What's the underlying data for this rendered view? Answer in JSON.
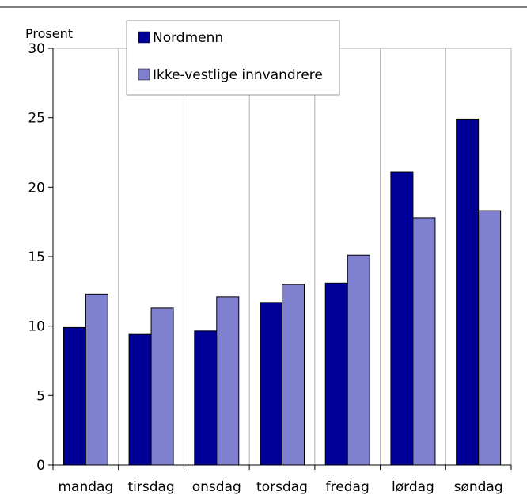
{
  "chart_data": {
    "type": "bar",
    "ylabel": "Prosent",
    "xlabel": "",
    "ylim": [
      0,
      30
    ],
    "yticks": [
      0,
      5,
      10,
      15,
      20,
      25,
      30
    ],
    "grid": "vertical lines between categories",
    "legend_placement": "top-left, inside plot",
    "categories": [
      "mandag",
      "tirsdag",
      "onsdag",
      "torsdag",
      "fredag",
      "lørdag",
      "søndag"
    ],
    "series": [
      {
        "name": "Nordmenn",
        "color": "#000099",
        "values": [
          9.9,
          9.4,
          9.65,
          11.7,
          13.1,
          21.1,
          24.9
        ]
      },
      {
        "name": "Ikke-vestlige innvandrere",
        "color": "#8080d0",
        "values": [
          12.3,
          11.3,
          12.1,
          13.0,
          15.1,
          17.8,
          18.3
        ]
      }
    ]
  }
}
